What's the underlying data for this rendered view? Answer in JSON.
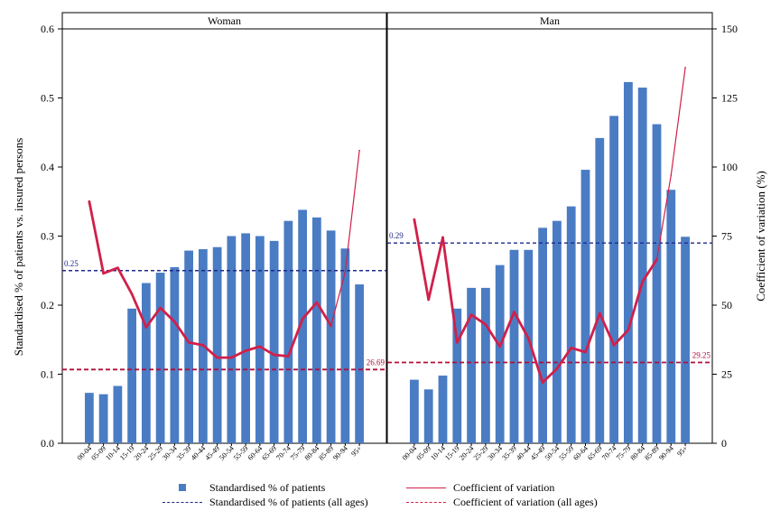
{
  "chart_data": {
    "type": "bar",
    "panels": [
      {
        "title": "Woman",
        "categories": [
          "00-04",
          "05-09",
          "10-14",
          "15-19",
          "20-24",
          "25-29",
          "30-34",
          "35-39",
          "40-44",
          "45-49",
          "50-54",
          "55-59",
          "60-64",
          "65-69",
          "70-74",
          "75-79",
          "80-84",
          "85-89",
          "90-94",
          "95+"
        ],
        "series": [
          {
            "name": "Standardised % of patients",
            "type": "bar",
            "axis": "left",
            "color": "#4a7cc4",
            "values": [
              0.073,
              0.071,
              0.083,
              0.195,
              0.232,
              0.247,
              0.255,
              0.279,
              0.281,
              0.284,
              0.3,
              0.304,
              0.3,
              0.293,
              0.322,
              0.338,
              0.327,
              0.308,
              0.282,
              0.23
            ]
          },
          {
            "name": "Coefficient of variation",
            "type": "line",
            "axis": "right",
            "color": "#d0204a",
            "values": [
              87.5,
              61.5,
              63.5,
              54.0,
              42.0,
              49.0,
              44.0,
              36.5,
              35.5,
              31.0,
              31.0,
              33.5,
              35.0,
              32.0,
              31.5,
              45.0,
              51.0,
              42.5,
              62.0,
              106.0
            ]
          }
        ],
        "overall_percent": 0.25,
        "overall_percent_label": "0.25",
        "overall_cv": 26.69,
        "overall_cv_label": "26.69"
      },
      {
        "title": "Man",
        "categories": [
          "00-04",
          "05-09",
          "10-14",
          "15-19",
          "20-24",
          "25-29",
          "30-34",
          "35-39",
          "40-44",
          "45-49",
          "50-54",
          "55-59",
          "60-64",
          "65-69",
          "70-74",
          "75-79",
          "80-84",
          "85-89",
          "90-94",
          "95+"
        ],
        "series": [
          {
            "name": "Standardised % of patients",
            "type": "bar",
            "axis": "left",
            "color": "#4a7cc4",
            "values": [
              0.092,
              0.078,
              0.098,
              0.195,
              0.225,
              0.225,
              0.258,
              0.28,
              0.28,
              0.312,
              0.322,
              0.343,
              0.396,
              0.442,
              0.474,
              0.523,
              0.515,
              0.462,
              0.367,
              0.299
            ]
          },
          {
            "name": "Coefficient of variation",
            "type": "line",
            "axis": "right",
            "color": "#d0204a",
            "values": [
              81.0,
              52.0,
              74.5,
              36.5,
              46.5,
              43.0,
              35.0,
              47.5,
              38.0,
              22.0,
              27.0,
              34.5,
              33.0,
              47.0,
              35.5,
              41.0,
              58.5,
              66.5,
              97.0,
              136.0
            ]
          }
        ],
        "overall_percent": 0.29,
        "overall_percent_label": "0.29",
        "overall_cv": 29.25,
        "overall_cv_label": "29.25"
      }
    ],
    "ylabel": "Standardised % of patients vs. insured persons",
    "y2label": "Coefficient of variation (%)",
    "ylim": [
      0,
      0.6
    ],
    "yticks": [
      "0.0",
      "0.1",
      "0.2",
      "0.3",
      "0.4",
      "0.5",
      "0.6"
    ],
    "y2lim": [
      0,
      150
    ],
    "y2ticks": [
      "0",
      "25",
      "50",
      "75",
      "100",
      "125",
      "150"
    ],
    "grid": false,
    "legend_position": "bottom",
    "legend": [
      {
        "label": "Standardised % of patients",
        "style": "square",
        "color": "#4a7cc4"
      },
      {
        "label": "Coefficient of variation",
        "style": "solid",
        "color": "#d0204a"
      },
      {
        "label": "Standardised % of patients (all ages)",
        "style": "dashed",
        "color": "#1f2a8a"
      },
      {
        "label": "Coefficient of variation (all ages)",
        "style": "dashed",
        "color": "#d0204a"
      }
    ],
    "colors": {
      "bar": "#4a7cc4",
      "cv_line": "#d0204a",
      "overall_percent_line": "#1f2a8a",
      "overall_cv_line": "#b0103a"
    }
  }
}
